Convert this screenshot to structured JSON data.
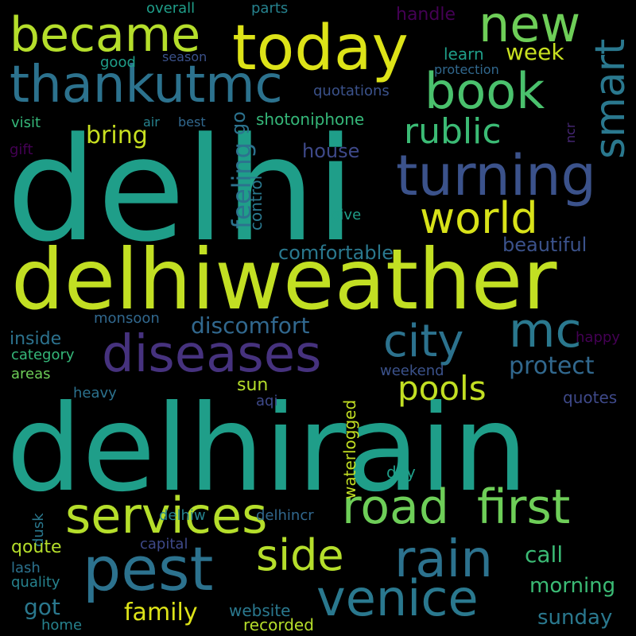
{
  "words": [
    {
      "text": "delhi",
      "color": "#1f9e89",
      "vertical": false
    },
    {
      "text": "delhirain",
      "color": "#1f9e89",
      "vertical": false
    },
    {
      "text": "delhiweather",
      "color": "#c2df23",
      "vertical": false
    },
    {
      "text": "today",
      "color": "#dde318",
      "vertical": false
    },
    {
      "text": "became",
      "color": "#b5de2b",
      "vertical": false
    },
    {
      "text": "thankutmc",
      "color": "#2c728e",
      "vertical": false
    },
    {
      "text": "turning",
      "color": "#3b528b",
      "vertical": false
    },
    {
      "text": "new",
      "color": "#6ece58",
      "vertical": false
    },
    {
      "text": "book",
      "color": "#4ac16d",
      "vertical": false
    },
    {
      "text": "smart",
      "color": "#2a788e",
      "vertical": true
    },
    {
      "text": "world",
      "color": "#d8e219",
      "vertical": false
    },
    {
      "text": "diseases",
      "color": "#46327e",
      "vertical": false
    },
    {
      "text": "city",
      "color": "#2c728e",
      "vertical": false
    },
    {
      "text": "mc",
      "color": "#2a788e",
      "vertical": false
    },
    {
      "text": "pest",
      "color": "#2c728e",
      "vertical": false
    },
    {
      "text": "services",
      "color": "#b5de2b",
      "vertical": false
    },
    {
      "text": "road",
      "color": "#6ece58",
      "vertical": false
    },
    {
      "text": "first",
      "color": "#6ece58",
      "vertical": false
    },
    {
      "text": "rain",
      "color": "#2c728e",
      "vertical": false
    },
    {
      "text": "venice",
      "color": "#2a788e",
      "vertical": false
    },
    {
      "text": "side",
      "color": "#b5de2b",
      "vertical": false
    },
    {
      "text": "pools",
      "color": "#c2df23",
      "vertical": false
    },
    {
      "text": "rublic",
      "color": "#3bbb75",
      "vertical": false
    },
    {
      "text": "bring",
      "color": "#c8e020",
      "vertical": false
    },
    {
      "text": "feeling",
      "color": "#2c728e",
      "vertical": true
    },
    {
      "text": "control",
      "color": "#2a788e",
      "vertical": true
    },
    {
      "text": "house",
      "color": "#3e4989",
      "vertical": false
    },
    {
      "text": "discomfort",
      "color": "#31688e",
      "vertical": false
    },
    {
      "text": "comfortable",
      "color": "#2a788e",
      "vertical": false
    },
    {
      "text": "beautiful",
      "color": "#3b528b",
      "vertical": false
    },
    {
      "text": "protect",
      "color": "#31688e",
      "vertical": false
    },
    {
      "text": "week",
      "color": "#c8e020",
      "vertical": false
    },
    {
      "text": "handle",
      "color": "#440154",
      "vertical": false
    },
    {
      "text": "learn",
      "color": "#1f9e89",
      "vertical": false
    },
    {
      "text": "protection",
      "color": "#31688e",
      "vertical": false
    },
    {
      "text": "quotations",
      "color": "#3b528b",
      "vertical": false
    },
    {
      "text": "shotoniphone",
      "color": "#35b779",
      "vertical": false
    },
    {
      "text": "overall",
      "color": "#1f9e89",
      "vertical": false
    },
    {
      "text": "parts",
      "color": "#26828e",
      "vertical": false
    },
    {
      "text": "season",
      "color": "#3b528b",
      "vertical": false
    },
    {
      "text": "good",
      "color": "#1f9e89",
      "vertical": false
    },
    {
      "text": "air",
      "color": "#26828e",
      "vertical": false
    },
    {
      "text": "best",
      "color": "#31688e",
      "vertical": false
    },
    {
      "text": "go",
      "color": "#2c728e",
      "vertical": true
    },
    {
      "text": "visit",
      "color": "#35b779",
      "vertical": false
    },
    {
      "text": "gift",
      "color": "#440154",
      "vertical": false
    },
    {
      "text": "ncr",
      "color": "#482878",
      "vertical": true
    },
    {
      "text": "give",
      "color": "#1f9e89",
      "vertical": false
    },
    {
      "text": "inside",
      "color": "#2c728e",
      "vertical": false
    },
    {
      "text": "monsoon",
      "color": "#31688e",
      "vertical": false
    },
    {
      "text": "category",
      "color": "#35b779",
      "vertical": false
    },
    {
      "text": "areas",
      "color": "#6ece58",
      "vertical": false
    },
    {
      "text": "happy",
      "color": "#440154",
      "vertical": false
    },
    {
      "text": "weekend",
      "color": "#3b528b",
      "vertical": false
    },
    {
      "text": "quotes",
      "color": "#3e4989",
      "vertical": false
    },
    {
      "text": "sun",
      "color": "#b5de2b",
      "vertical": false
    },
    {
      "text": "aqi",
      "color": "#3e4989",
      "vertical": false
    },
    {
      "text": "heavy",
      "color": "#2c728e",
      "vertical": false
    },
    {
      "text": "waterlogged",
      "color": "#c2df23",
      "vertical": true
    },
    {
      "text": "day",
      "color": "#1f9e89",
      "vertical": false
    },
    {
      "text": "delhiw",
      "color": "#26828e",
      "vertical": false
    },
    {
      "text": "delhincr",
      "color": "#31688e",
      "vertical": false
    },
    {
      "text": "dusk",
      "color": "#2a788e",
      "vertical": true
    },
    {
      "text": "qoute",
      "color": "#b5de2b",
      "vertical": false
    },
    {
      "text": "capital",
      "color": "#3e4989",
      "vertical": false
    },
    {
      "text": "lash",
      "color": "#2c728e",
      "vertical": false
    },
    {
      "text": "quality",
      "color": "#26828e",
      "vertical": false
    },
    {
      "text": "call",
      "color": "#3bbb75",
      "vertical": false
    },
    {
      "text": "morning",
      "color": "#3bbb75",
      "vertical": false
    },
    {
      "text": "got",
      "color": "#2a788e",
      "vertical": false
    },
    {
      "text": "family",
      "color": "#dde318",
      "vertical": false
    },
    {
      "text": "website",
      "color": "#2a788e",
      "vertical": false
    },
    {
      "text": "home",
      "color": "#26828e",
      "vertical": false
    },
    {
      "text": "recorded",
      "color": "#b5de2b",
      "vertical": false
    },
    {
      "text": "sunday",
      "color": "#2a788e",
      "vertical": false
    }
  ]
}
